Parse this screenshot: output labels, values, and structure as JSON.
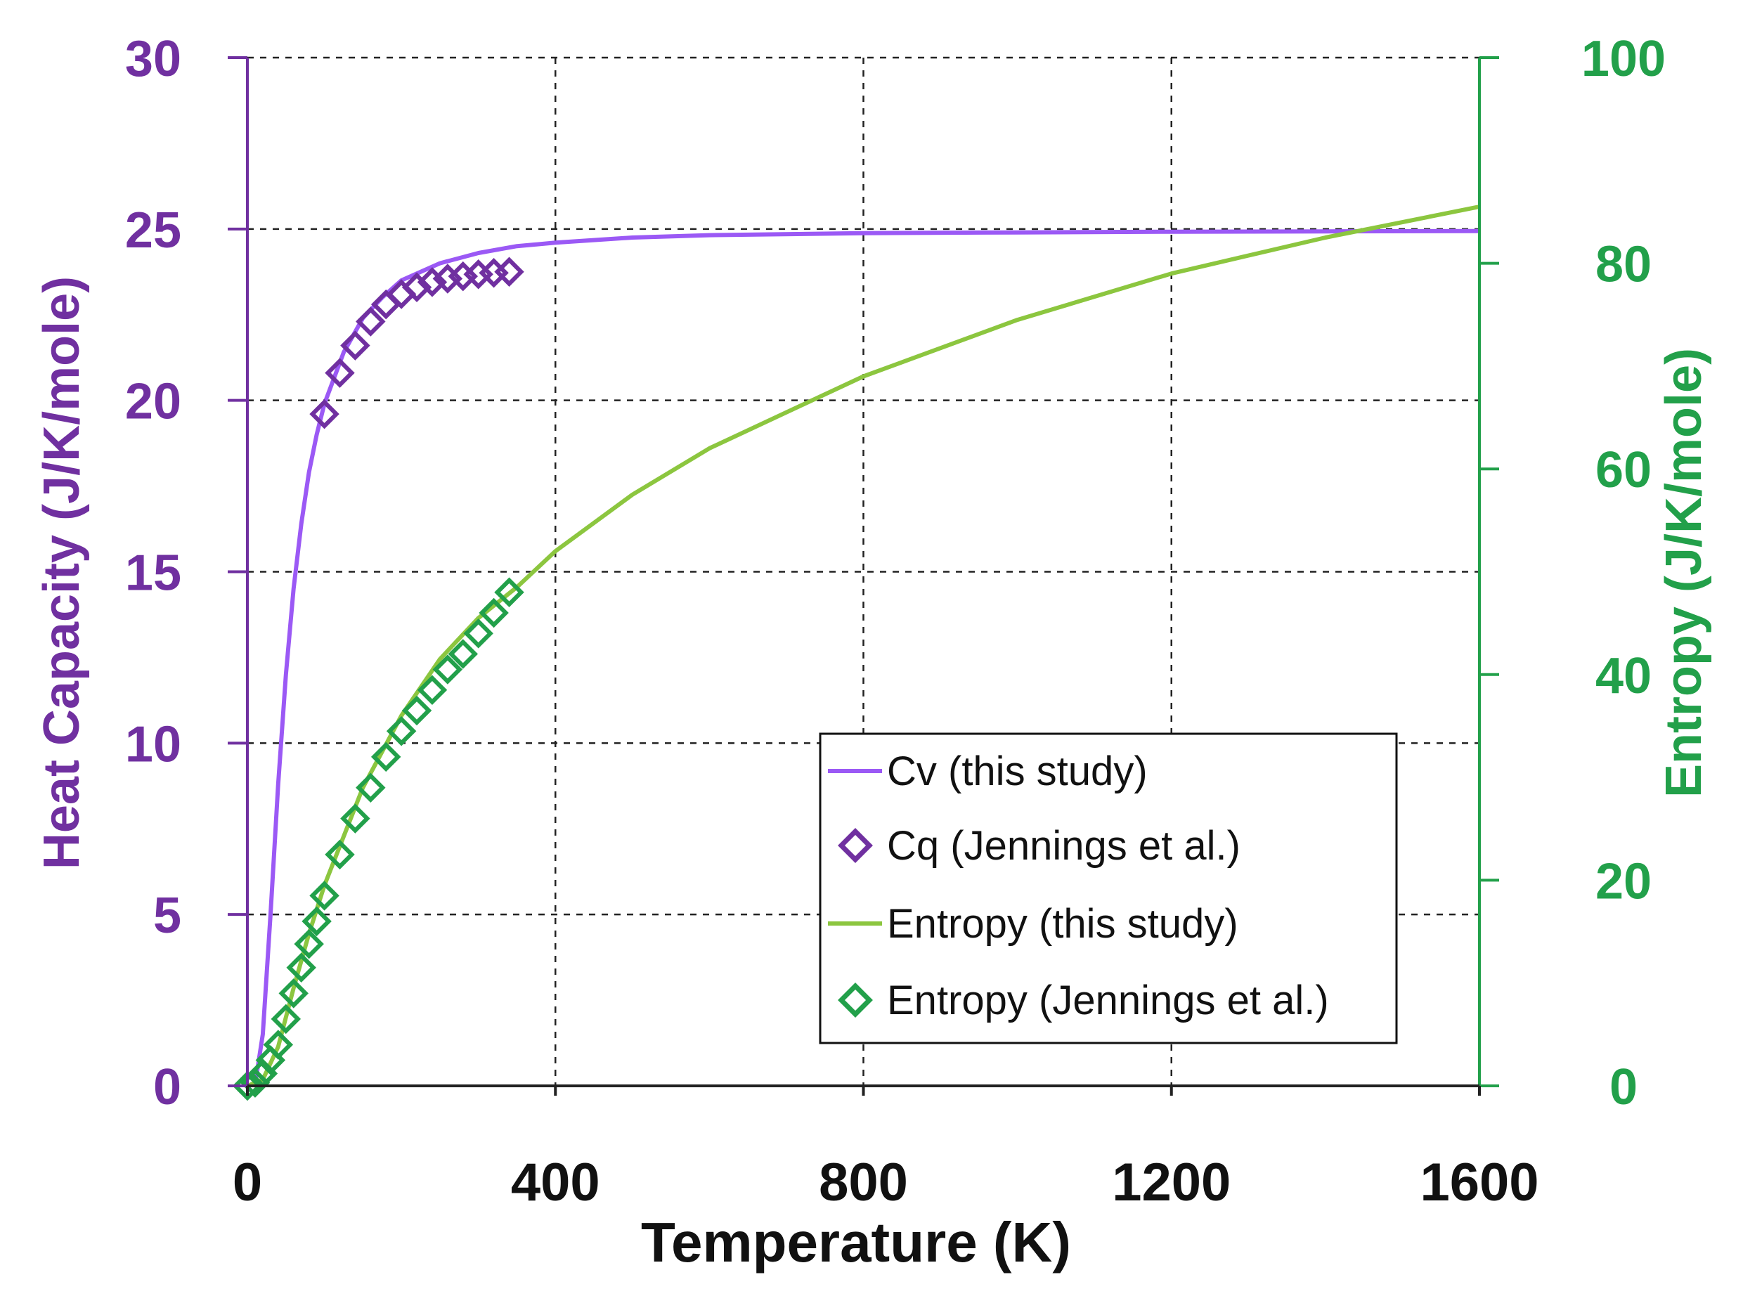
{
  "chart_data": {
    "type": "line",
    "xlabel": "Temperature (K)",
    "ylabel_left": "Heat Capacity (J/K/mole)",
    "ylabel_right": "Entropy (J/K/mole)",
    "xlim": [
      0,
      1600
    ],
    "ylim_left": [
      0,
      30
    ],
    "ylim_right": [
      0,
      100
    ],
    "x_ticks": [
      "0",
      "400",
      "800",
      "1200",
      "1600"
    ],
    "y_ticks_left": [
      "0",
      "5",
      "10",
      "15",
      "20",
      "25",
      "30"
    ],
    "y_ticks_right": [
      "0",
      "20",
      "40",
      "60",
      "80",
      "100"
    ],
    "grid": true,
    "legend_position": "bottom-right",
    "colors": {
      "cv_line": "#9b59f5",
      "cq_markers": "#7030a0",
      "entropy_line": "#8cc63f",
      "entropy_markers": "#22a04a",
      "left_axis": "#7030a0",
      "right_axis": "#22a04a"
    },
    "series": [
      {
        "name": "Cv (this study)",
        "axis": "left",
        "style": "line",
        "x": [
          0,
          10,
          20,
          30,
          40,
          50,
          60,
          70,
          80,
          90,
          100,
          125,
          150,
          175,
          200,
          250,
          300,
          350,
          400,
          500,
          600,
          800,
          1000,
          1200,
          1400,
          1600
        ],
        "y": [
          0,
          0.05,
          1.5,
          5.0,
          8.8,
          12.0,
          14.5,
          16.4,
          17.9,
          19.0,
          19.9,
          21.4,
          22.4,
          23.0,
          23.5,
          24.0,
          24.3,
          24.5,
          24.6,
          24.75,
          24.82,
          24.88,
          24.9,
          24.92,
          24.93,
          24.94
        ]
      },
      {
        "name": "Cq (Jennings et al.)",
        "axis": "left",
        "style": "marker",
        "x": [
          100,
          120,
          140,
          160,
          180,
          200,
          220,
          240,
          260,
          280,
          300,
          320,
          340
        ],
        "y": [
          19.6,
          20.8,
          21.6,
          22.3,
          22.8,
          23.1,
          23.3,
          23.45,
          23.55,
          23.62,
          23.68,
          23.72,
          23.75
        ]
      },
      {
        "name": "Entropy (this study)",
        "axis": "right",
        "style": "line",
        "x": [
          0,
          20,
          40,
          60,
          80,
          100,
          150,
          200,
          250,
          300,
          350,
          400,
          500,
          600,
          800,
          1000,
          1200,
          1400,
          1600
        ],
        "y": [
          0,
          0.6,
          3.8,
          9.5,
          14.8,
          19.5,
          29.0,
          36.0,
          41.5,
          45.5,
          48.5,
          52.0,
          57.5,
          62.0,
          69.0,
          74.5,
          79.0,
          82.5,
          85.5
        ]
      },
      {
        "name": "Entropy (Jennings et al.)",
        "axis": "right",
        "style": "marker",
        "x": [
          0,
          10,
          20,
          30,
          40,
          50,
          60,
          70,
          80,
          90,
          100,
          120,
          140,
          160,
          180,
          200,
          220,
          240,
          260,
          280,
          300,
          320,
          340
        ],
        "y": [
          0,
          0.3,
          1.2,
          2.5,
          4.0,
          6.5,
          9.0,
          11.5,
          13.8,
          16.0,
          18.5,
          22.5,
          26.0,
          29.0,
          32.0,
          34.5,
          36.5,
          38.5,
          40.5,
          42.0,
          44.0,
          46.0,
          48.0
        ]
      }
    ]
  }
}
